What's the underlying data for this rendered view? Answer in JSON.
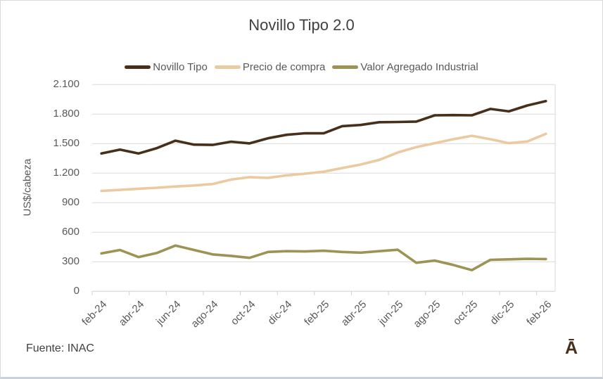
{
  "title": "Novillo Tipo 2.0",
  "source": "Fuente: INAC",
  "logo_mark": "Ā",
  "chart_data": {
    "type": "line",
    "title": "Novillo Tipo 2.0",
    "xlabel": "",
    "ylabel": "US$/cabeza",
    "ylim": [
      0,
      2100
    ],
    "grid": true,
    "legend_position": "top",
    "categories": [
      "feb-24",
      "mar-24",
      "abr-24",
      "may-24",
      "jun-24",
      "jul-24",
      "ago-24",
      "sep-24",
      "oct-24",
      "nov-24",
      "dic-24",
      "ene-25",
      "feb-25",
      "mar-25",
      "abr-25",
      "may-25",
      "jun-25",
      "jul-25",
      "ago-25",
      "sep-25",
      "oct-25",
      "nov-25",
      "dic-25",
      "ene-26",
      "feb-26"
    ],
    "x_tick_labels": [
      "feb-24",
      "abr-24",
      "jun-24",
      "ago-24",
      "oct-24",
      "dic-24",
      "feb-25",
      "abr-25",
      "jun-25",
      "ago-25",
      "oct-25",
      "dic-25",
      "feb-26"
    ],
    "y_tick_values": [
      0,
      300,
      600,
      900,
      1200,
      1500,
      1800,
      2100
    ],
    "y_tick_labels": [
      "0",
      "300",
      "600",
      "900",
      "1.200",
      "1.500",
      "1.800",
      "2.100"
    ],
    "series": [
      {
        "name": "Novillo Tipo",
        "color": "#46301c",
        "values": [
          1400,
          1440,
          1400,
          1455,
          1530,
          1490,
          1487,
          1520,
          1503,
          1555,
          1590,
          1606,
          1605,
          1678,
          1690,
          1718,
          1720,
          1724,
          1788,
          1790,
          1788,
          1853,
          1828,
          1888,
          1932
        ]
      },
      {
        "name": "Precio de compra",
        "color": "#eccaa1",
        "values": [
          1020,
          1030,
          1042,
          1052,
          1065,
          1075,
          1090,
          1135,
          1160,
          1152,
          1178,
          1195,
          1215,
          1252,
          1288,
          1335,
          1410,
          1465,
          1505,
          1545,
          1580,
          1545,
          1505,
          1522,
          1600
        ]
      },
      {
        "name": "Valor Agregado Industrial",
        "color": "#9c9355",
        "values": [
          385,
          420,
          348,
          390,
          465,
          420,
          375,
          360,
          340,
          400,
          408,
          405,
          412,
          400,
          393,
          408,
          422,
          290,
          312,
          268,
          215,
          320,
          325,
          330,
          328
        ]
      }
    ],
    "style": {
      "grid_color": "#d9d9d9",
      "axis_color": "#cfcfcf",
      "tick_text_color": "#595959",
      "title_color": "#404040",
      "line_width": 3.6
    }
  }
}
